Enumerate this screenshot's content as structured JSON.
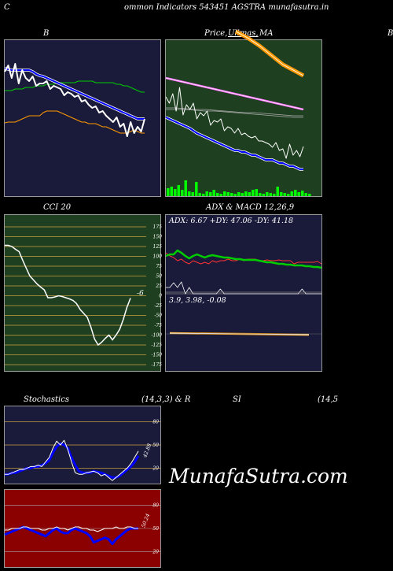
{
  "page": {
    "title": "ommon  Indicators 543451 AGSTRA munafasutra.in",
    "left_letter": "C",
    "watermark": "MunafaSutra.com"
  },
  "colors": {
    "navy": "#1a1a3a",
    "darkgreen": "#1f4020",
    "darkred": "#8b0000",
    "green_line": "#00cc00",
    "blue_line": "#0000ff",
    "orange_line": "#ff9900",
    "grid_orange": "#c8a040"
  },
  "panels": {
    "bollinger": {
      "title": "B"
    },
    "price_ma": {
      "title_left": "Price,",
      "title_mid": "Ullmas,",
      "title_right": "MA",
      "edge_letter": "B"
    },
    "cci": {
      "title": "CCI 20",
      "value_label": "-6"
    },
    "adx_macd": {
      "title": "ADX  & MACD 12,26,9",
      "adx_text": "ADX: 6.67 +DY: 47.06  -DY: 41.18",
      "macd_text": "3.9,  3.98,  -0.08"
    },
    "stochastics": {
      "title_left": "Stochastics",
      "title_right": "(14,3,3) & R",
      "value_label": "42.88"
    },
    "rsi": {
      "title_mid": "SI",
      "title_right": "(14,5",
      "value_label": "50.24"
    }
  },
  "chart_data": [
    {
      "type": "line",
      "name": "bollinger",
      "x": [
        0,
        1,
        2,
        3,
        4,
        5,
        6,
        7,
        8,
        9,
        10,
        11,
        12,
        13,
        14,
        15,
        16,
        17,
        18,
        19,
        20,
        21,
        22,
        23,
        24,
        25,
        26,
        27,
        28,
        29,
        30,
        31,
        32,
        33,
        34,
        35,
        36,
        37,
        38,
        39,
        40
      ],
      "series": [
        {
          "values": [
            40,
            32,
            48,
            30,
            55,
            38,
            48,
            52,
            46,
            58,
            55,
            55,
            52,
            62,
            58,
            60,
            62,
            70,
            66,
            68,
            72,
            70,
            78,
            76,
            82,
            86,
            84,
            92,
            90,
            96,
            100,
            104,
            98,
            110,
            106,
            122,
            104,
            118,
            110,
            116,
            100
          ]
        },
        {
          "values": [
            36,
            37,
            38,
            38,
            38,
            38,
            38,
            38,
            40,
            43,
            45,
            46,
            48,
            50,
            52,
            54,
            56,
            58,
            60,
            62,
            64,
            66,
            68,
            70,
            72,
            74,
            76,
            78,
            80,
            82,
            84,
            86,
            88,
            90,
            92,
            94,
            96,
            98,
            100,
            100,
            100
          ]
        },
        {
          "values": [
            64,
            64,
            64,
            62,
            62,
            62,
            60,
            60,
            60,
            58,
            58,
            58,
            56,
            56,
            56,
            54,
            54,
            54,
            54,
            54,
            54,
            52,
            52,
            52,
            52,
            52,
            54,
            54,
            54,
            54,
            54,
            54,
            56,
            56,
            58,
            58,
            60,
            62,
            64,
            66,
            66
          ]
        },
        {
          "values": [
            105,
            104,
            104,
            104,
            102,
            100,
            98,
            96,
            96,
            96,
            96,
            92,
            90,
            90,
            90,
            90,
            92,
            94,
            96,
            98,
            100,
            102,
            104,
            104,
            106,
            106,
            106,
            108,
            110,
            110,
            112,
            114,
            116,
            118,
            118,
            118,
            116,
            114,
            116,
            118,
            118
          ]
        }
      ]
    },
    {
      "type": "line",
      "name": "price-ma",
      "series": [
        {
          "values": [
            98,
            100,
            102,
            104,
            106,
            108,
            110,
            112,
            115,
            118,
            120,
            122,
            124,
            126,
            128,
            130,
            132,
            134,
            136,
            138,
            140,
            140,
            142,
            142,
            144,
            146,
            146,
            148,
            150,
            152,
            152,
            152,
            154,
            156,
            156,
            158,
            160,
            160,
            162,
            164,
            164
          ]
        },
        {
          "values": [
            72,
            80,
            68,
            90,
            60,
            95,
            82,
            88,
            80,
            100,
            92,
            96,
            90,
            108,
            102,
            104,
            100,
            115,
            110,
            112,
            118,
            112,
            120,
            118,
            122,
            124,
            122,
            128,
            128,
            130,
            132,
            136,
            130,
            140,
            138,
            150,
            132,
            146,
            140,
            148,
            135
          ]
        },
        {
          "values": [
            70,
            69,
            67,
            66,
            66,
            65,
            66,
            66,
            70,
            74,
            76,
            78,
            80,
            82,
            84,
            86,
            88,
            90,
            92,
            94,
            96,
            98,
            100,
            102,
            104,
            106,
            108,
            110,
            112,
            114,
            116,
            118,
            120,
            122,
            124,
            126,
            128,
            130,
            132,
            132,
            132
          ]
        }
      ],
      "volume": [
        10,
        12,
        9,
        14,
        8,
        20,
        6,
        5,
        18,
        4,
        3,
        6,
        5,
        8,
        4,
        3,
        6,
        5,
        4,
        3,
        5,
        4,
        6,
        5,
        8,
        9,
        4,
        3,
        5,
        4,
        3,
        12,
        5,
        4,
        3,
        6,
        8,
        5,
        7,
        4,
        3
      ]
    },
    {
      "type": "line",
      "name": "cci",
      "ylim": [
        -175,
        175
      ],
      "y_ticks": [
        175,
        150,
        125,
        100,
        75,
        50,
        25,
        0,
        -25,
        -50,
        -75,
        -100,
        -125,
        -150,
        -175
      ],
      "values": [
        128,
        128,
        125,
        118,
        112,
        90,
        70,
        50,
        40,
        30,
        22,
        15,
        -5,
        -5,
        -3,
        0,
        -2,
        -5,
        -8,
        -12,
        -20,
        -35,
        -45,
        -55,
        -80,
        -110,
        -125,
        -118,
        -108,
        -100,
        -112,
        -100,
        -85,
        -60,
        -30,
        -6
      ]
    },
    {
      "type": "line",
      "name": "adx-macd",
      "series": [
        {
          "values": [
            52,
            50,
            50,
            45,
            48,
            52,
            55,
            52,
            50,
            52,
            54,
            52,
            51,
            52,
            53,
            54,
            54,
            55,
            56,
            56,
            57,
            57,
            57,
            57,
            58,
            59,
            60,
            60,
            61,
            62,
            62,
            63,
            63,
            64,
            64,
            64,
            65,
            65,
            66,
            66,
            67
          ]
        },
        {
          "values": [
            48,
            52,
            54,
            58,
            56,
            60,
            62,
            58,
            60,
            62,
            60,
            62,
            58,
            60,
            58,
            58,
            56,
            58,
            58,
            56,
            58,
            56,
            56,
            56,
            58,
            58,
            57,
            58,
            58,
            57,
            58,
            58,
            58,
            62,
            60,
            60,
            60,
            60,
            60,
            59,
            62
          ]
        }
      ],
      "macd": [
        3.9,
        3.98,
        -0.08
      ]
    },
    {
      "type": "line",
      "name": "stochastics",
      "ylim": [
        0,
        100
      ],
      "y_ticks": [
        80,
        50,
        20
      ],
      "series": [
        {
          "values": [
            12,
            12,
            14,
            16,
            18,
            18,
            20,
            22,
            22,
            24,
            22,
            28,
            34,
            46,
            55,
            50,
            56,
            44,
            28,
            14,
            12,
            12,
            14,
            15,
            16,
            14,
            10,
            12,
            8,
            4,
            8,
            12,
            16,
            20,
            26,
            34,
            42
          ]
        },
        {
          "values": [
            12,
            12,
            14,
            14,
            16,
            18,
            20,
            20,
            22,
            22,
            24,
            26,
            30,
            40,
            48,
            52,
            50,
            46,
            34,
            24,
            16,
            14,
            14,
            14,
            16,
            15,
            14,
            12,
            10,
            8,
            8,
            10,
            14,
            18,
            22,
            28,
            36
          ]
        }
      ]
    },
    {
      "type": "line",
      "name": "rsi",
      "ylim": [
        0,
        100
      ],
      "y_ticks": [
        80,
        50,
        20
      ],
      "series": [
        {
          "values": [
            42,
            44,
            46,
            48,
            50,
            52,
            50,
            48,
            46,
            44,
            42,
            40,
            44,
            48,
            50,
            46,
            44,
            44,
            48,
            50,
            48,
            46,
            44,
            40,
            32,
            34,
            36,
            38,
            36,
            30,
            36,
            40,
            44,
            48,
            50,
            50,
            50
          ]
        },
        {
          "values": [
            48,
            48,
            50,
            50,
            50,
            52,
            52,
            50,
            50,
            50,
            48,
            48,
            50,
            50,
            52,
            50,
            50,
            48,
            50,
            52,
            52,
            50,
            50,
            48,
            48,
            46,
            48,
            50,
            50,
            50,
            52,
            50,
            50,
            52,
            52,
            50,
            50
          ]
        }
      ]
    }
  ]
}
